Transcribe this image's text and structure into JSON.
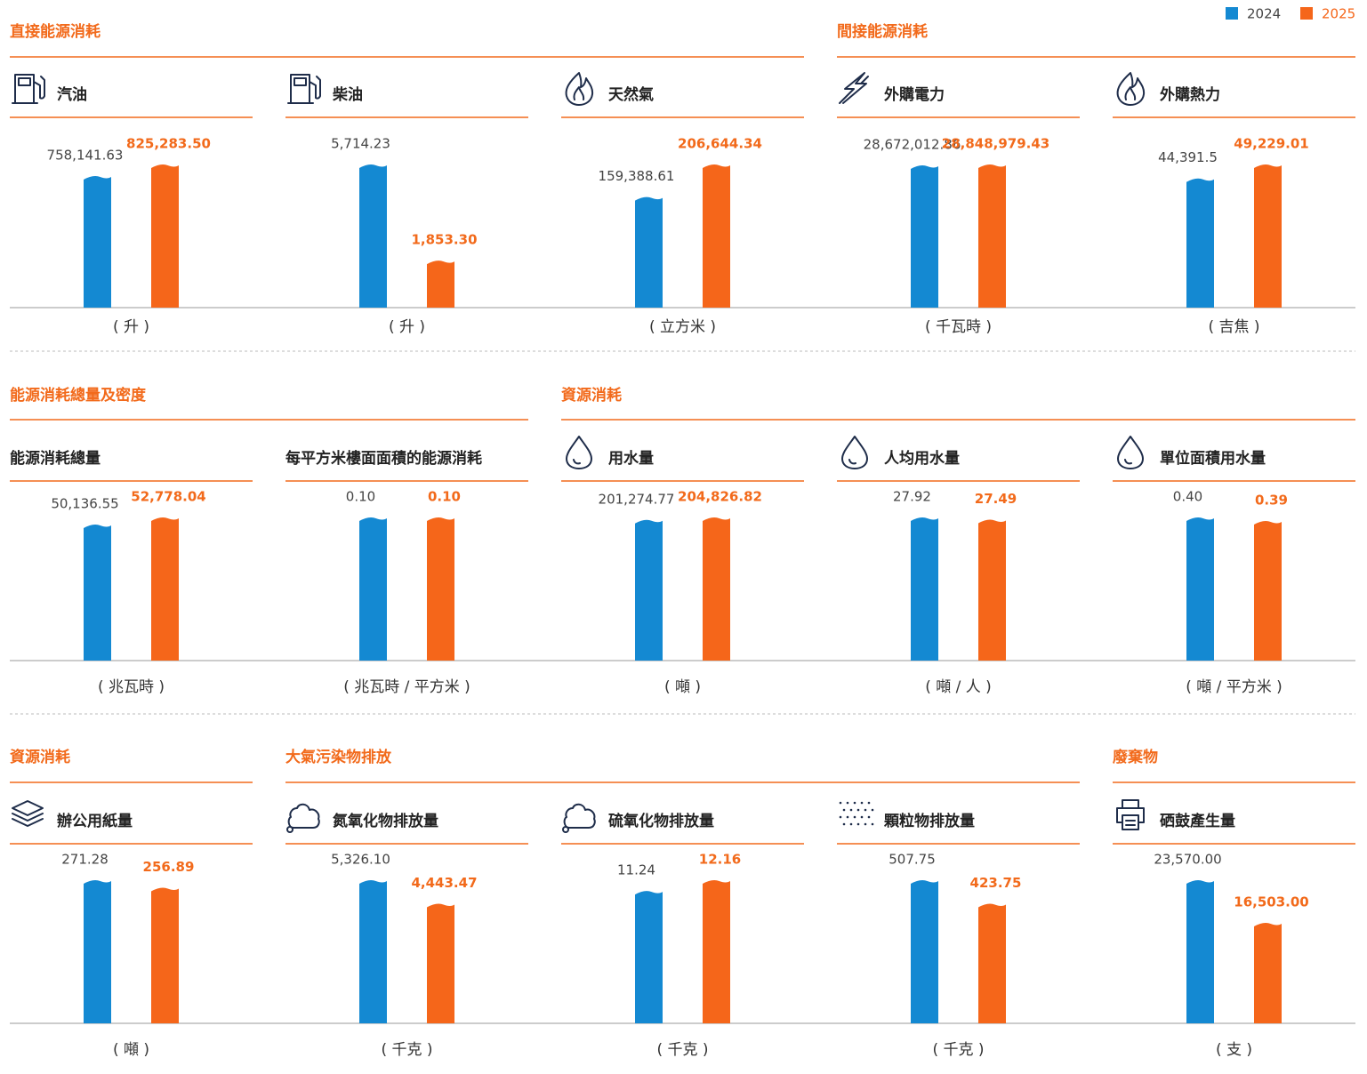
{
  "legend": {
    "series": [
      {
        "name": "2024",
        "color": "#1489d2"
      },
      {
        "name": "2025",
        "color": "#f5661a"
      }
    ]
  },
  "sections": [
    {
      "title": "直接能源消耗"
    },
    {
      "title": "間接能源消耗"
    },
    {
      "title": "能源消耗總量及密度"
    },
    {
      "title": "資源消耗"
    },
    {
      "title": "資源消耗"
    },
    {
      "title": "大氣污染物排放"
    },
    {
      "title": "廢棄物"
    }
  ],
  "chart_data": [
    {
      "type": "bar",
      "title": "汽油",
      "values": [
        758141.63,
        825283.5
      ],
      "value_labels": [
        "758,141.63",
        "825,283.50"
      ],
      "unit": "( 升 )"
    },
    {
      "type": "bar",
      "title": "柴油",
      "values": [
        5714.23,
        1853.3
      ],
      "value_labels": [
        "5,714.23",
        "1,853.30"
      ],
      "unit": "( 升 )"
    },
    {
      "type": "bar",
      "title": "天然氣",
      "values": [
        159388.61,
        206644.34
      ],
      "value_labels": [
        "159,388.61",
        "206,644.34"
      ],
      "unit": "( 立方米 )"
    },
    {
      "type": "bar",
      "title": "外購電力",
      "values": [
        28672012.86,
        28848979.43
      ],
      "value_labels": [
        "28,672,012.86",
        "28,848,979.43"
      ],
      "unit": "( 千瓦時 )"
    },
    {
      "type": "bar",
      "title": "外購熱力",
      "values": [
        44391.5,
        49229.01
      ],
      "value_labels": [
        "44,391.5",
        "49,229.01"
      ],
      "unit": "( 吉焦 )"
    },
    {
      "type": "bar",
      "title": "能源消耗總量",
      "values": [
        50136.55,
        52778.04
      ],
      "value_labels": [
        "50,136.55",
        "52,778.04"
      ],
      "unit": "( 兆瓦時 )"
    },
    {
      "type": "bar",
      "title": "每平方米樓面面積的能源消耗",
      "values": [
        0.1,
        0.1
      ],
      "value_labels": [
        "0.10",
        "0.10"
      ],
      "unit": "( 兆瓦時 / 平方米 )"
    },
    {
      "type": "bar",
      "title": "用水量",
      "values": [
        201274.77,
        204826.82
      ],
      "value_labels": [
        "201,274.77",
        "204,826.82"
      ],
      "unit": "( 噸 )"
    },
    {
      "type": "bar",
      "title": "人均用水量",
      "values": [
        27.92,
        27.49
      ],
      "value_labels": [
        "27.92",
        "27.49"
      ],
      "unit": "( 噸 / 人 )"
    },
    {
      "type": "bar",
      "title": "單位面積用水量",
      "values": [
        0.4,
        0.39
      ],
      "value_labels": [
        "0.40",
        "0.39"
      ],
      "unit": "( 噸 / 平方米 )"
    },
    {
      "type": "bar",
      "title": "辦公用紙量",
      "values": [
        271.28,
        256.89
      ],
      "value_labels": [
        "271.28",
        "256.89"
      ],
      "unit": "( 噸 )"
    },
    {
      "type": "bar",
      "title": "氮氧化物排放量",
      "values": [
        5326.1,
        4443.47
      ],
      "value_labels": [
        "5,326.10",
        "4,443.47"
      ],
      "unit": "( 千克 )"
    },
    {
      "type": "bar",
      "title": "硫氧化物排放量",
      "values": [
        11.24,
        12.16
      ],
      "value_labels": [
        "11.24",
        "12.16"
      ],
      "unit": "( 千克 )"
    },
    {
      "type": "bar",
      "title": "顆粒物排放量",
      "values": [
        507.75,
        423.75
      ],
      "value_labels": [
        "507.75",
        "423.75"
      ],
      "unit": "( 千克 )"
    },
    {
      "type": "bar",
      "title": "硒鼓產生量",
      "values": [
        23570.0,
        16503.0
      ],
      "value_labels": [
        "23,570.00",
        "16,503.00"
      ],
      "unit": "( 支 )"
    }
  ]
}
